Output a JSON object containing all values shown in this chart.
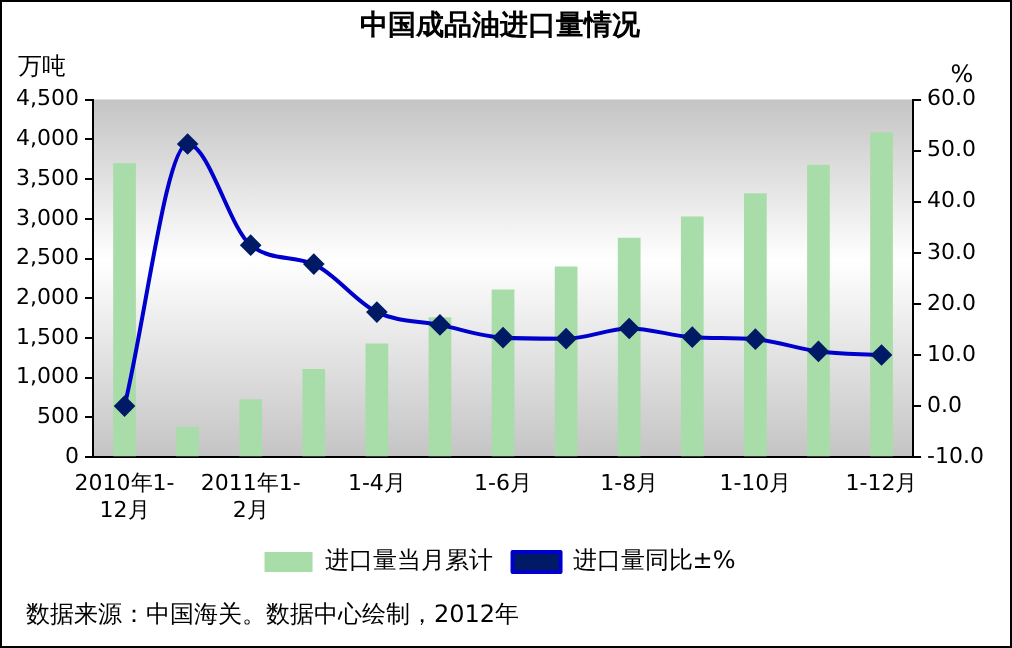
{
  "chart_data": {
    "type": "bar",
    "title": "中国成品油进口量情况",
    "ylabel": "万吨",
    "y2label": "%",
    "categories": [
      "2010年1-12月",
      null,
      "2011年1-2月",
      null,
      "1-4月",
      null,
      "1-6月",
      null,
      "1-8月",
      null,
      "1-10月",
      null,
      "1-12月"
    ],
    "series": [
      {
        "name": "进口量当月累计",
        "color": "#a8dca8",
        "values": [
          3700,
          380,
          730,
          1110,
          1430,
          1760,
          2110,
          2400,
          2760,
          3030,
          3320,
          3680,
          4090
        ]
      },
      {
        "name": "进口量同比±%",
        "type": "line",
        "axis": "y2",
        "color": "#0000cc",
        "marker": "diamond",
        "values": [
          0.0,
          51.3,
          31.5,
          27.8,
          18.4,
          15.9,
          13.4,
          13.2,
          15.2,
          13.5,
          13.1,
          10.7,
          10.0
        ]
      }
    ],
    "ylim": [
      0,
      4500
    ],
    "yticks": [
      {
        "value": 0,
        "label": "0"
      },
      {
        "value": 500,
        "label": "500"
      },
      {
        "value": 1000,
        "label": "1,000"
      },
      {
        "value": 1500,
        "label": "1,500"
      },
      {
        "value": 2000,
        "label": "2,000"
      },
      {
        "value": 2500,
        "label": "2,500"
      },
      {
        "value": 3000,
        "label": "3,000"
      },
      {
        "value": 3500,
        "label": "3,500"
      },
      {
        "value": 4000,
        "label": "4,000"
      },
      {
        "value": 4500,
        "label": "4,500"
      }
    ],
    "y2lim": [
      -10,
      60
    ],
    "y2ticks": [
      {
        "value": -10,
        "label": "-10.0"
      },
      {
        "value": 0,
        "label": "0.0"
      },
      {
        "value": 10,
        "label": "10.0"
      },
      {
        "value": 20,
        "label": "20.0"
      },
      {
        "value": 30,
        "label": "30.0"
      },
      {
        "value": 40,
        "label": "40.0"
      },
      {
        "value": 50,
        "label": "50.0"
      },
      {
        "value": 60,
        "label": "60.0"
      }
    ],
    "grid": false,
    "legend": "bottom",
    "annotations": [
      "数据来源：中国海关。数据中心绘制，2012年"
    ]
  }
}
